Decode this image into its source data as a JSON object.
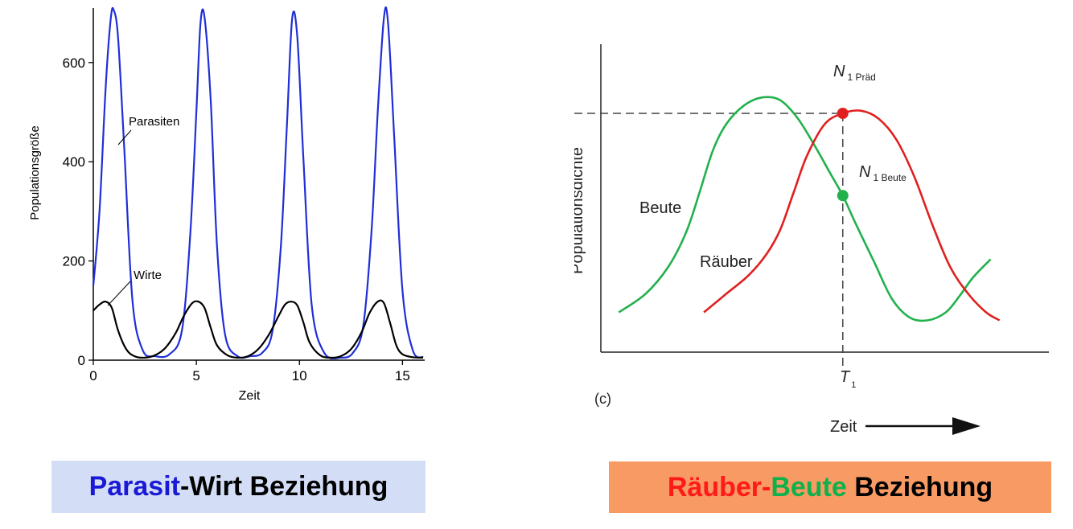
{
  "left_panel": {
    "caption": {
      "part1": "Parasit",
      "part2": "-Wirt Beziehung",
      "color1": "#1a1ad6",
      "color2": "#000000"
    }
  },
  "right_panel": {
    "caption": {
      "part1": "Räuber",
      "part2": "-",
      "part3": "Beute",
      "part4": " Beziehung",
      "color_rauber": "#ff1a1a",
      "color_dash": "#ff1a1a",
      "color_beute": "#10b04a",
      "color_rest": "#000000"
    }
  },
  "chart_data": [
    {
      "type": "line",
      "xlabel": "Zeit",
      "ylabel": "Populationsgröße",
      "xlim": [
        0,
        16
      ],
      "ylim": [
        0,
        700
      ],
      "xticks": [
        "0",
        "5",
        "10",
        "15"
      ],
      "yticks": [
        "0",
        "200",
        "400",
        "600"
      ],
      "series": [
        {
          "name": "Parasiten",
          "color": "#1f2fd6",
          "x": [
            0,
            0.3,
            0.6,
            0.85,
            1.0,
            1.2,
            1.5,
            1.9,
            2.4,
            3.0,
            3.7,
            4.3,
            4.7,
            5.0,
            5.2,
            5.4,
            5.7,
            6.0,
            6.4,
            7.0,
            7.6,
            8.2,
            8.7,
            9.1,
            9.4,
            9.65,
            9.9,
            10.2,
            10.6,
            11.2,
            12.0,
            12.6,
            13.1,
            13.5,
            13.8,
            14.1,
            14.3,
            14.6,
            15.0,
            15.5,
            16.0
          ],
          "y": [
            150,
            300,
            550,
            690,
            705,
            650,
            430,
            120,
            20,
            8,
            12,
            60,
            250,
            500,
            680,
            690,
            520,
            230,
            50,
            8,
            8,
            15,
            60,
            230,
            480,
            690,
            650,
            400,
            110,
            15,
            5,
            15,
            70,
            260,
            500,
            690,
            680,
            450,
            140,
            20,
            6
          ]
        },
        {
          "name": "Wirte",
          "color": "#000000",
          "x": [
            0,
            0.3,
            0.6,
            0.9,
            1.2,
            1.6,
            2.0,
            2.5,
            3.0,
            3.5,
            4.0,
            4.4,
            4.8,
            5.1,
            5.4,
            5.7,
            6.0,
            6.5,
            7.0,
            7.5,
            8.0,
            8.5,
            9.0,
            9.3,
            9.6,
            9.9,
            10.2,
            10.5,
            11.0,
            11.5,
            12.0,
            12.5,
            13.0,
            13.4,
            13.8,
            14.1,
            14.4,
            14.7,
            15.0,
            15.5,
            16.0
          ],
          "y": [
            100,
            112,
            118,
            105,
            60,
            22,
            8,
            5,
            10,
            25,
            55,
            90,
            115,
            118,
            105,
            65,
            30,
            10,
            5,
            8,
            22,
            50,
            90,
            112,
            118,
            110,
            75,
            35,
            10,
            5,
            8,
            22,
            55,
            95,
            118,
            115,
            75,
            30,
            12,
            6,
            5
          ]
        }
      ]
    },
    {
      "type": "line",
      "xlabel": "Zeit",
      "ylabel": "Populationsdichte",
      "panel_label": "(c)",
      "x_marker": "T",
      "x_marker_sub": "1",
      "point_prad": {
        "label": "N",
        "sub": "1 Präd",
        "x": 0.54,
        "y": 0.9
      },
      "point_beute": {
        "label": "N",
        "sub": "1 Beute",
        "x": 0.54,
        "y": 0.59
      },
      "axis_values": "unlabeled",
      "xlim": [
        0,
        1
      ],
      "ylim": [
        0,
        1.1
      ],
      "series": [
        {
          "name": "Beute",
          "color": "#22b14c",
          "x": [
            0.04,
            0.1,
            0.15,
            0.19,
            0.22,
            0.25,
            0.28,
            0.32,
            0.36,
            0.4,
            0.44,
            0.48,
            0.51,
            0.54,
            0.57,
            0.61,
            0.65,
            0.69,
            0.73,
            0.77,
            0.8,
            0.83,
            0.87
          ],
          "y": [
            0.15,
            0.22,
            0.32,
            0.45,
            0.6,
            0.76,
            0.86,
            0.93,
            0.96,
            0.95,
            0.88,
            0.77,
            0.68,
            0.59,
            0.48,
            0.34,
            0.2,
            0.13,
            0.12,
            0.15,
            0.21,
            0.28,
            0.35
          ]
        },
        {
          "name": "Räuber",
          "color": "#e02020",
          "x": [
            0.23,
            0.28,
            0.33,
            0.37,
            0.4,
            0.43,
            0.46,
            0.5,
            0.54,
            0.58,
            0.62,
            0.66,
            0.7,
            0.74,
            0.78,
            0.82,
            0.86,
            0.89
          ],
          "y": [
            0.15,
            0.22,
            0.29,
            0.37,
            0.46,
            0.6,
            0.74,
            0.86,
            0.9,
            0.91,
            0.88,
            0.8,
            0.66,
            0.48,
            0.32,
            0.22,
            0.15,
            0.12
          ]
        }
      ]
    }
  ]
}
